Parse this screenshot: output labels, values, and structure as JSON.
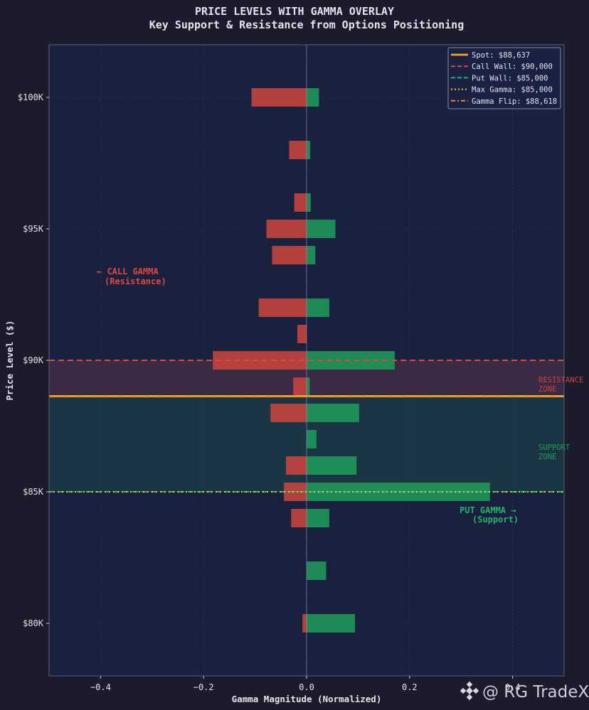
{
  "chart_data": {
    "type": "bar",
    "orientation": "horizontal",
    "title": "PRICE LEVELS WITH GAMMA OVERLAY",
    "subtitle": "Key Support & Resistance from Options Positioning",
    "xlabel": "Gamma Magnitude (Normalized)",
    "ylabel": "Price Level ($)",
    "xlim": [
      -0.5,
      0.5
    ],
    "ylim": [
      78000,
      102000
    ],
    "x_ticks": [
      {
        "value": -0.4,
        "label": "−0.4"
      },
      {
        "value": -0.2,
        "label": "−0.2"
      },
      {
        "value": 0.0,
        "label": "0.0"
      },
      {
        "value": 0.2,
        "label": "0.2"
      },
      {
        "value": 0.4,
        "label": "0.4"
      }
    ],
    "y_ticks": [
      {
        "value": 80000,
        "label": "$80K"
      },
      {
        "value": 85000,
        "label": "$85K"
      },
      {
        "value": 90000,
        "label": "$90K"
      },
      {
        "value": 95000,
        "label": "$95K"
      },
      {
        "value": 100000,
        "label": "$100K"
      }
    ],
    "levels": [
      100000,
      98000,
      96000,
      95000,
      94000,
      92000,
      91000,
      90000,
      89000,
      88000,
      87000,
      86000,
      85000,
      84000,
      83000,
      82000,
      80000
    ],
    "series": [
      {
        "name": "Call Gamma",
        "color": "#c9443f",
        "values": [
          -0.107,
          -0.034,
          -0.024,
          -0.078,
          -0.067,
          -0.093,
          -0.018,
          -0.182,
          -0.026,
          -0.07,
          0.0,
          -0.04,
          -0.044,
          -0.03,
          0.0,
          0.0,
          -0.008
        ]
      },
      {
        "name": "Put Gamma",
        "color": "#1f9a5a",
        "values": [
          0.024,
          0.007,
          0.008,
          0.056,
          0.017,
          0.044,
          0.0,
          0.171,
          0.006,
          0.102,
          0.019,
          0.097,
          0.356,
          0.044,
          0.0,
          0.038,
          0.094
        ]
      }
    ],
    "reference_lines": [
      {
        "label": "Spot: $88,637",
        "value": 88637,
        "color": "#f5a623",
        "style": "solid"
      },
      {
        "label": "Call Wall: $90,000",
        "value": 90000,
        "color": "#e0483f",
        "style": "dashed"
      },
      {
        "label": "Put Wall: $85,000",
        "value": 85000,
        "color": "#22b36a",
        "style": "dashed"
      },
      {
        "label": "Max Gamma: $85,000",
        "value": 85000,
        "color": "#e6c84a",
        "style": "dotted"
      },
      {
        "label": "Gamma Flip: $88,618",
        "value": 88618,
        "color": "#f08a24",
        "style": "dashdot"
      }
    ],
    "zones": [
      {
        "name": "resistance",
        "label_line1": "RESISTANCE",
        "label_line2": "ZONE",
        "from": 88637,
        "to": 90000,
        "color": "#3a2a44"
      },
      {
        "name": "support",
        "label_line1": "SUPPORT",
        "label_line2": "ZONE",
        "from": 85000,
        "to": 88637,
        "color": "#1b3545"
      }
    ],
    "annotations": [
      {
        "name": "call-gamma-annotation",
        "line1": "← CALL GAMMA",
        "line2": "(Resistance)",
        "color": "#e0483f"
      },
      {
        "name": "put-gamma-annotation",
        "line1": "PUT GAMMA →",
        "line2": "(Support)",
        "color": "#22b36a"
      }
    ],
    "legend_position": "top-right",
    "grid": true
  },
  "watermark": "@ RG TradeX",
  "colors": {
    "page_bg": "#1b1b2b",
    "plot_bg": "#19213f",
    "text": "#e4e4ee",
    "axis": "#5a5f7c"
  }
}
